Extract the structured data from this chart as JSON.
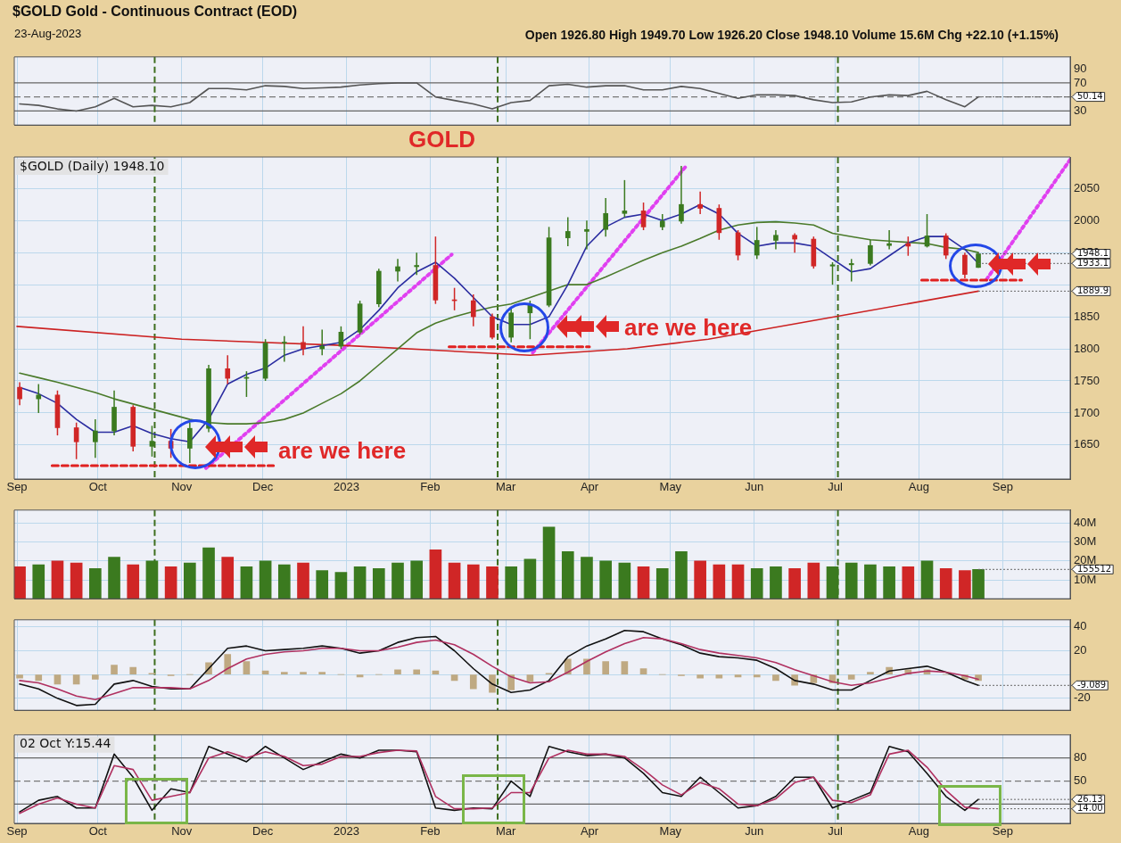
{
  "chart_data": [
    {
      "type": "line",
      "title": "$GOLD Gold - Continuous Contract (EOD)",
      "subtitle": "23-Aug-2023",
      "annotations": [
        "Open 1926.80 High 1949.70 Low 1926.20 Close 1948.10 Volume 15.6M Chg +22.10 (+1.15%)",
        {
          "text": "50.14",
          "x": "2023-08-23",
          "y": 50.14
        }
      ],
      "x": [
        "2022-09-02",
        "2022-09-09",
        "2022-09-16",
        "2022-09-23",
        "2022-09-30",
        "2022-10-07",
        "2022-10-14",
        "2022-10-21",
        "2022-10-28",
        "2022-11-04",
        "2022-11-11",
        "2022-11-18",
        "2022-11-25",
        "2022-12-02",
        "2022-12-09",
        "2022-12-16",
        "2022-12-23",
        "2022-12-30",
        "2023-01-06",
        "2023-01-13",
        "2023-01-20",
        "2023-01-27",
        "2023-02-03",
        "2023-02-10",
        "2023-02-17",
        "2023-02-24",
        "2023-03-03",
        "2023-03-10",
        "2023-03-17",
        "2023-03-24",
        "2023-03-31",
        "2023-04-07",
        "2023-04-14",
        "2023-04-21",
        "2023-04-28",
        "2023-05-05",
        "2023-05-12",
        "2023-05-19",
        "2023-05-26",
        "2023-06-02",
        "2023-06-09",
        "2023-06-16",
        "2023-06-23",
        "2023-06-30",
        "2023-07-07",
        "2023-07-14",
        "2023-07-21",
        "2023-07-28",
        "2023-08-04",
        "2023-08-11",
        "2023-08-18",
        "2023-08-23"
      ],
      "series": [
        {
          "color": "#555555",
          "values": [
            40,
            38,
            33,
            30,
            36,
            48,
            36,
            38,
            36,
            42,
            62,
            62,
            60,
            66,
            65,
            62,
            63,
            64,
            67,
            69,
            70,
            70,
            50,
            45,
            40,
            33,
            42,
            45,
            66,
            68,
            64,
            66,
            66,
            60,
            60,
            65,
            62,
            55,
            48,
            53,
            53,
            52,
            46,
            42,
            43,
            50,
            53,
            52,
            58,
            46,
            36,
            50.14
          ]
        }
      ],
      "xlim": [
        "2022-08-31",
        "2023-09-26"
      ],
      "xticks": [
        {
          "value": "2022-09-01",
          "label": null
        },
        {
          "value": "2022-10-01",
          "label": null
        },
        {
          "value": "2022-11-01",
          "label": null
        },
        {
          "value": "2022-12-01",
          "label": null
        },
        {
          "value": "2023-01-01",
          "label": null
        },
        {
          "value": "2023-02-01",
          "label": null
        },
        {
          "value": "2023-03-01",
          "label": null
        },
        {
          "value": "2023-04-01",
          "label": null
        },
        {
          "value": "2023-05-01",
          "label": null
        },
        {
          "value": "2023-06-01",
          "label": null
        },
        {
          "value": "2023-07-01",
          "label": null
        },
        {
          "value": "2023-08-01",
          "label": null
        },
        {
          "value": "2023-09-01",
          "label": null
        }
      ],
      "ylim": [
        10,
        107
      ],
      "yticks": [
        30,
        {
          "value": 50,
          "label": null
        },
        70,
        90
      ],
      "tick_labels": "y",
      "grid": "x",
      "marker": "none",
      "ref_lines": [
        {
          "axis": "y",
          "value": 70,
          "color": "#666666",
          "line_style": "solid"
        },
        {
          "axis": "y",
          "value": 50,
          "color": "#777777",
          "line_style": "dashed"
        },
        {
          "axis": "y",
          "value": 30,
          "color": "#666666",
          "line_style": "solid"
        },
        {
          "axis": "x",
          "value": "2022-10-22",
          "color": "#3d6e1e",
          "line_style": "dashed"
        },
        {
          "axis": "x",
          "value": "2023-02-26",
          "color": "#3d6e1e",
          "line_style": "dashed"
        },
        {
          "axis": "x",
          "value": "2023-07-02",
          "color": "#3d6e1e",
          "line_style": "dashed"
        }
      ]
    },
    {
      "type": "candlestick",
      "title": "GOLD",
      "annotations": [
        "$GOLD (Daily) 1948.10",
        "are we here",
        "are we here",
        {
          "text": "1948.1",
          "x": "2023-08-23",
          "y": 1948.1
        },
        {
          "text": "1933.1",
          "x": "2023-08-23",
          "y": 1933.1
        },
        {
          "text": "1889.9",
          "x": "2023-08-23",
          "y": 1889.9
        }
      ],
      "x": [
        "2022-09-02",
        "2022-09-09",
        "2022-09-16",
        "2022-09-23",
        "2022-09-30",
        "2022-10-07",
        "2022-10-14",
        "2022-10-21",
        "2022-10-28",
        "2022-11-04",
        "2022-11-11",
        "2022-11-18",
        "2022-11-25",
        "2022-12-02",
        "2022-12-09",
        "2022-12-16",
        "2022-12-23",
        "2022-12-30",
        "2023-01-06",
        "2023-01-13",
        "2023-01-20",
        "2023-01-27",
        "2023-02-03",
        "2023-02-10",
        "2023-02-17",
        "2023-02-24",
        "2023-03-03",
        "2023-03-10",
        "2023-03-17",
        "2023-03-24",
        "2023-03-31",
        "2023-04-07",
        "2023-04-14",
        "2023-04-21",
        "2023-04-28",
        "2023-05-05",
        "2023-05-12",
        "2023-05-19",
        "2023-05-26",
        "2023-06-02",
        "2023-06-09",
        "2023-06-16",
        "2023-06-23",
        "2023-06-30",
        "2023-07-07",
        "2023-07-14",
        "2023-07-21",
        "2023-07-28",
        "2023-08-04",
        "2023-08-11",
        "2023-08-18",
        "2023-08-23"
      ],
      "ohlc": [
        [
          1740,
          1748,
          1712,
          1722
        ],
        [
          1722,
          1745,
          1700,
          1728
        ],
        [
          1728,
          1735,
          1665,
          1677
        ],
        [
          1677,
          1685,
          1628,
          1655
        ],
        [
          1655,
          1690,
          1630,
          1672
        ],
        [
          1672,
          1735,
          1665,
          1709
        ],
        [
          1709,
          1712,
          1640,
          1648
        ],
        [
          1648,
          1680,
          1632,
          1656
        ],
        [
          1656,
          1675,
          1630,
          1645
        ],
        [
          1645,
          1685,
          1622,
          1676
        ],
        [
          1676,
          1775,
          1670,
          1769
        ],
        [
          1769,
          1790,
          1745,
          1754
        ],
        [
          1754,
          1765,
          1725,
          1754
        ],
        [
          1754,
          1815,
          1750,
          1809
        ],
        [
          1809,
          1820,
          1780,
          1810
        ],
        [
          1810,
          1835,
          1790,
          1800
        ],
        [
          1800,
          1830,
          1790,
          1804
        ],
        [
          1804,
          1835,
          1800,
          1826
        ],
        [
          1826,
          1875,
          1822,
          1870
        ],
        [
          1870,
          1925,
          1865,
          1921
        ],
        [
          1921,
          1940,
          1905,
          1928
        ],
        [
          1928,
          1950,
          1915,
          1930
        ],
        [
          1930,
          1975,
          1870,
          1876
        ],
        [
          1876,
          1895,
          1860,
          1875
        ],
        [
          1875,
          1885,
          1835,
          1850
        ],
        [
          1850,
          1855,
          1815,
          1818
        ],
        [
          1818,
          1865,
          1810,
          1856
        ],
        [
          1856,
          1875,
          1815,
          1868
        ],
        [
          1868,
          1990,
          1865,
          1973
        ],
        [
          1973,
          2005,
          1960,
          1983
        ],
        [
          1983,
          2000,
          1955,
          1986
        ],
        [
          1986,
          2035,
          1975,
          2011
        ],
        [
          2011,
          2063,
          2005,
          2015
        ],
        [
          2015,
          2028,
          1985,
          1990
        ],
        [
          1990,
          2010,
          1985,
          1999
        ],
        [
          1999,
          2085,
          1995,
          2025
        ],
        [
          2025,
          2045,
          2010,
          2019
        ],
        [
          2019,
          2025,
          1970,
          1981
        ],
        [
          1981,
          1985,
          1938,
          1946
        ],
        [
          1946,
          1990,
          1940,
          1969
        ],
        [
          1969,
          1985,
          1955,
          1977
        ],
        [
          1977,
          1980,
          1950,
          1971
        ],
        [
          1971,
          1975,
          1925,
          1929
        ],
        [
          1929,
          1935,
          1900,
          1931
        ],
        [
          1931,
          1940,
          1905,
          1933
        ],
        [
          1933,
          1970,
          1930,
          1961
        ],
        [
          1961,
          1985,
          1955,
          1964
        ],
        [
          1964,
          1975,
          1945,
          1960
        ],
        [
          1960,
          2010,
          1958,
          1976
        ],
        [
          1976,
          1980,
          1940,
          1946
        ],
        [
          1946,
          1950,
          1910,
          1916
        ],
        [
          1926.8,
          1949.7,
          1926.2,
          1948.1
        ]
      ],
      "colors": [
        "#d02626",
        "#3b7a1f",
        "#d02626",
        "#d02626",
        "#3b7a1f",
        "#3b7a1f",
        "#d02626",
        "#3b7a1f",
        "#d02626",
        "#3b7a1f",
        "#3b7a1f",
        "#d02626",
        "#3b7a1f",
        "#3b7a1f",
        "#3b7a1f",
        "#d02626",
        "#3b7a1f",
        "#3b7a1f",
        "#3b7a1f",
        "#3b7a1f",
        "#3b7a1f",
        "#3b7a1f",
        "#d02626",
        "#d02626",
        "#d02626",
        "#d02626",
        "#3b7a1f",
        "#3b7a1f",
        "#3b7a1f",
        "#3b7a1f",
        "#3b7a1f",
        "#3b7a1f",
        "#3b7a1f",
        "#d02626",
        "#3b7a1f",
        "#3b7a1f",
        "#d02626",
        "#d02626",
        "#d02626",
        "#3b7a1f",
        "#3b7a1f",
        "#d02626",
        "#d02626",
        "#3b7a1f",
        "#3b7a1f",
        "#3b7a1f",
        "#3b7a1f",
        "#d02626",
        "#3b7a1f",
        "#d02626",
        "#d02626",
        "#3b7a1f"
      ],
      "series": [
        {
          "type": "line",
          "color": "#2a2ca0",
          "values": [
            1740,
            1730,
            1715,
            1690,
            1670,
            1670,
            1680,
            1668,
            1660,
            1655,
            1690,
            1745,
            1760,
            1770,
            1790,
            1800,
            1805,
            1810,
            1830,
            1860,
            1895,
            1920,
            1935,
            1910,
            1880,
            1850,
            1838,
            1838,
            1850,
            1900,
            1960,
            1990,
            2005,
            2010,
            2000,
            2010,
            2025,
            2010,
            1980,
            1960,
            1965,
            1965,
            1960,
            1940,
            1920,
            1925,
            1945,
            1965,
            1975,
            1975,
            1955,
            1933.1
          ]
        },
        {
          "type": "line",
          "color": "#4a7a2a",
          "values": [
            1762,
            1755,
            1748,
            1740,
            1732,
            1722,
            1714,
            1706,
            1698,
            1690,
            1685,
            1683,
            1683,
            1685,
            1690,
            1700,
            1715,
            1730,
            1750,
            1775,
            1800,
            1825,
            1840,
            1850,
            1858,
            1865,
            1870,
            1880,
            1890,
            1900,
            1900,
            1912,
            1925,
            1938,
            1950,
            1960,
            1972,
            1985,
            1993,
            1997,
            1998,
            1996,
            1993,
            1980,
            1975,
            1970,
            1968,
            1966,
            1964,
            1958,
            1955,
            1950
          ]
        },
        {
          "type": "line",
          "color": "#cc2222",
          "x": [
            "2022-09-01",
            "2022-11-01",
            "2023-01-01",
            "2023-03-10",
            "2023-04-15",
            "2023-05-15",
            "2023-07-01",
            "2023-08-23"
          ],
          "values": [
            1835,
            1815,
            1805,
            1790,
            1800,
            1815,
            1850,
            1889.9
          ]
        },
        {
          "type": "line",
          "color": "#e02020",
          "line_style": "dashed",
          "x": [
            "2022-09-14",
            "2022-12-05"
          ],
          "values": [
            1618,
            1618
          ]
        },
        {
          "type": "line",
          "color": "#e02020",
          "line_style": "dashed",
          "x": [
            "2023-02-08",
            "2023-04-01"
          ],
          "values": [
            1803,
            1803
          ]
        },
        {
          "type": "line",
          "color": "#e02020",
          "line_style": "dashed",
          "x": [
            "2023-08-02",
            "2023-09-08"
          ],
          "values": [
            1907,
            1907
          ]
        },
        {
          "type": "line",
          "color": "#e040f0",
          "line_style": "dotted",
          "x": [
            "2022-11-10",
            "2023-02-09"
          ],
          "values": [
            1614,
            1947
          ]
        },
        {
          "type": "line",
          "color": "#e040f0",
          "line_style": "dotted",
          "x": [
            "2023-03-11",
            "2023-05-07"
          ],
          "values": [
            1794,
            2086
          ]
        },
        {
          "type": "line",
          "color": "#e040f0",
          "line_style": "dotted",
          "x": [
            "2023-08-26",
            "2023-09-26"
          ],
          "values": [
            1908,
            2095
          ]
        }
      ],
      "xlim": [
        "2022-08-31",
        "2023-09-26"
      ],
      "xticks": [
        {
          "value": "2022-09-01",
          "label": "Sep"
        },
        {
          "value": "2022-10-01",
          "label": "Oct"
        },
        {
          "value": "2022-11-01",
          "label": "Nov"
        },
        {
          "value": "2022-12-01",
          "label": "Dec"
        },
        {
          "value": "2023-01-01",
          "label": "2023"
        },
        {
          "value": "2023-02-01",
          "label": "Feb"
        },
        {
          "value": "2023-03-01",
          "label": "Mar"
        },
        {
          "value": "2023-04-01",
          "label": "Apr"
        },
        {
          "value": "2023-05-01",
          "label": "May"
        },
        {
          "value": "2023-06-01",
          "label": "Jun"
        },
        {
          "value": "2023-07-01",
          "label": "Jul"
        },
        {
          "value": "2023-08-01",
          "label": "Aug"
        },
        {
          "value": "2023-09-01",
          "label": "Sep"
        }
      ],
      "ylim": [
        1597,
        2099
      ],
      "yticks": [
        1650,
        1700,
        1750,
        1800,
        1850,
        {
          "value": 1900,
          "label": null
        },
        1950,
        2000,
        2050
      ],
      "grid": true,
      "marker": "none",
      "ref_lines": [
        {
          "axis": "x",
          "value": "2022-10-22",
          "color": "#3d6e1e",
          "line_style": "dashed"
        },
        {
          "axis": "x",
          "value": "2023-02-26",
          "color": "#3d6e1e",
          "line_style": "dashed"
        },
        {
          "axis": "x",
          "value": "2023-07-02",
          "color": "#3d6e1e",
          "line_style": "dashed"
        }
      ]
    },
    {
      "type": "bar",
      "annotations": [
        {
          "text": "155512",
          "x": "2023-08-23",
          "y": 15.5512
        }
      ],
      "x": [
        "2022-09-02",
        "2022-09-09",
        "2022-09-16",
        "2022-09-23",
        "2022-09-30",
        "2022-10-07",
        "2022-10-14",
        "2022-10-21",
        "2022-10-28",
        "2022-11-04",
        "2022-11-11",
        "2022-11-18",
        "2022-11-25",
        "2022-12-02",
        "2022-12-09",
        "2022-12-16",
        "2022-12-23",
        "2022-12-30",
        "2023-01-06",
        "2023-01-13",
        "2023-01-20",
        "2023-01-27",
        "2023-02-03",
        "2023-02-10",
        "2023-02-17",
        "2023-02-24",
        "2023-03-03",
        "2023-03-10",
        "2023-03-17",
        "2023-03-24",
        "2023-03-31",
        "2023-04-07",
        "2023-04-14",
        "2023-04-21",
        "2023-04-28",
        "2023-05-05",
        "2023-05-12",
        "2023-05-19",
        "2023-05-26",
        "2023-06-02",
        "2023-06-09",
        "2023-06-16",
        "2023-06-23",
        "2023-06-30",
        "2023-07-07",
        "2023-07-14",
        "2023-07-21",
        "2023-07-28",
        "2023-08-04",
        "2023-08-11",
        "2023-08-18",
        "2023-08-23"
      ],
      "values": [
        17,
        18,
        20,
        19,
        16,
        22,
        18,
        20,
        17,
        19,
        27,
        22,
        17,
        20,
        18,
        19,
        15,
        14,
        17,
        16,
        19,
        20,
        26,
        19,
        18,
        17,
        17,
        21,
        38,
        25,
        22,
        20,
        19,
        17,
        16,
        25,
        20,
        18,
        18,
        16,
        17,
        16,
        19,
        17,
        19,
        18,
        17,
        17,
        20,
        16,
        15,
        15.5512
      ],
      "colors": [
        "#d02626",
        "#3b7a1f",
        "#d02626",
        "#d02626",
        "#3b7a1f",
        "#3b7a1f",
        "#d02626",
        "#3b7a1f",
        "#d02626",
        "#3b7a1f",
        "#3b7a1f",
        "#d02626",
        "#3b7a1f",
        "#3b7a1f",
        "#3b7a1f",
        "#d02626",
        "#3b7a1f",
        "#3b7a1f",
        "#3b7a1f",
        "#3b7a1f",
        "#3b7a1f",
        "#3b7a1f",
        "#d02626",
        "#d02626",
        "#d02626",
        "#d02626",
        "#3b7a1f",
        "#3b7a1f",
        "#3b7a1f",
        "#3b7a1f",
        "#3b7a1f",
        "#3b7a1f",
        "#3b7a1f",
        "#d02626",
        "#3b7a1f",
        "#3b7a1f",
        "#d02626",
        "#d02626",
        "#d02626",
        "#3b7a1f",
        "#3b7a1f",
        "#d02626",
        "#d02626",
        "#3b7a1f",
        "#3b7a1f",
        "#3b7a1f",
        "#3b7a1f",
        "#d02626",
        "#3b7a1f",
        "#d02626",
        "#d02626",
        "#3b7a1f"
      ],
      "xlim": [
        "2022-08-31",
        "2023-09-26"
      ],
      "xticks": [
        {
          "value": "2022-09-01",
          "label": null
        },
        {
          "value": "2022-10-01",
          "label": null
        },
        {
          "value": "2022-11-01",
          "label": null
        },
        {
          "value": "2022-12-01",
          "label": null
        },
        {
          "value": "2023-01-01",
          "label": null
        },
        {
          "value": "2023-02-01",
          "label": null
        },
        {
          "value": "2023-03-01",
          "label": null
        },
        {
          "value": "2023-04-01",
          "label": null
        },
        {
          "value": "2023-05-01",
          "label": null
        },
        {
          "value": "2023-06-01",
          "label": null
        },
        {
          "value": "2023-07-01",
          "label": null
        },
        {
          "value": "2023-08-01",
          "label": null
        },
        {
          "value": "2023-09-01",
          "label": null
        }
      ],
      "ylim": [
        0,
        47
      ],
      "yticks": [
        {
          "value": 10,
          "label": "10M"
        },
        {
          "value": 20,
          "label": "20M"
        },
        {
          "value": 30,
          "label": "30M"
        },
        {
          "value": 40,
          "label": "40M"
        }
      ],
      "tick_labels": "y",
      "grid": true,
      "ref_lines": [
        {
          "axis": "x",
          "value": "2022-10-22",
          "color": "#3d6e1e",
          "line_style": "dashed"
        },
        {
          "axis": "x",
          "value": "2023-02-26",
          "color": "#3d6e1e",
          "line_style": "dashed"
        },
        {
          "axis": "x",
          "value": "2023-07-02",
          "color": "#3d6e1e",
          "line_style": "dashed"
        }
      ]
    },
    {
      "type": "line",
      "annotations": [
        {
          "text": "-9.089",
          "x": "2023-08-23",
          "y": -9.089
        }
      ],
      "x": [
        "2022-09-02",
        "2022-09-09",
        "2022-09-16",
        "2022-09-23",
        "2022-09-30",
        "2022-10-07",
        "2022-10-14",
        "2022-10-21",
        "2022-10-28",
        "2022-11-04",
        "2022-11-11",
        "2022-11-18",
        "2022-11-25",
        "2022-12-02",
        "2022-12-09",
        "2022-12-16",
        "2022-12-23",
        "2022-12-30",
        "2023-01-06",
        "2023-01-13",
        "2023-01-20",
        "2023-01-27",
        "2023-02-03",
        "2023-02-10",
        "2023-02-17",
        "2023-02-24",
        "2023-03-03",
        "2023-03-10",
        "2023-03-17",
        "2023-03-24",
        "2023-03-31",
        "2023-04-07",
        "2023-04-14",
        "2023-04-21",
        "2023-04-28",
        "2023-05-05",
        "2023-05-12",
        "2023-05-19",
        "2023-05-26",
        "2023-06-02",
        "2023-06-09",
        "2023-06-16",
        "2023-06-23",
        "2023-06-30",
        "2023-07-07",
        "2023-07-14",
        "2023-07-21",
        "2023-07-28",
        "2023-08-04",
        "2023-08-11",
        "2023-08-18",
        "2023-08-23"
      ],
      "series": [
        {
          "type": "bar",
          "color": "#bfa982",
          "values": [
            -3,
            -5,
            -8,
            -8,
            -4,
            8,
            6,
            1,
            -1,
            0,
            10,
            17,
            11,
            3,
            2,
            2,
            2,
            0,
            -2,
            0,
            4,
            4,
            3,
            -5,
            -12,
            -15,
            -13,
            -6,
            1,
            13,
            13,
            11,
            11,
            5,
            0,
            -1,
            -3,
            -3,
            -2,
            -2,
            -5,
            -9,
            -7,
            -7,
            -4,
            2,
            6,
            4,
            4,
            0,
            -4,
            -5
          ]
        },
        {
          "type": "line",
          "color": "#b03060",
          "values": [
            -5,
            -7,
            -12,
            -18,
            -21,
            -16,
            -11,
            -11,
            -11,
            -12,
            -5,
            5,
            13,
            17,
            19,
            20,
            22,
            22,
            20,
            20,
            23,
            27,
            29,
            25,
            17,
            7,
            -2,
            -7,
            -6,
            2,
            11,
            19,
            26,
            31,
            30,
            26,
            21,
            18,
            16,
            14,
            10,
            4,
            -1,
            -6,
            -9,
            -7,
            -3,
            1,
            3,
            2,
            -1,
            -4
          ]
        },
        {
          "type": "line",
          "color": "#111111",
          "values": [
            -8,
            -12,
            -20,
            -26,
            -25,
            -8,
            -5,
            -10,
            -12,
            -12,
            5,
            22,
            24,
            20,
            21,
            22,
            24,
            22,
            18,
            20,
            27,
            31,
            32,
            20,
            5,
            -8,
            -15,
            -13,
            -5,
            15,
            24,
            30,
            37,
            36,
            30,
            25,
            18,
            15,
            14,
            12,
            5,
            -5,
            -8,
            -13,
            -13,
            -5,
            3,
            5,
            7,
            2,
            -5,
            -9.089
          ]
        }
      ],
      "xlim": [
        "2022-08-31",
        "2023-09-26"
      ],
      "xticks": [
        {
          "value": "2022-09-01",
          "label": null
        },
        {
          "value": "2022-10-01",
          "label": null
        },
        {
          "value": "2022-11-01",
          "label": null
        },
        {
          "value": "2022-12-01",
          "label": null
        },
        {
          "value": "2023-01-01",
          "label": null
        },
        {
          "value": "2023-02-01",
          "label": null
        },
        {
          "value": "2023-03-01",
          "label": null
        },
        {
          "value": "2023-04-01",
          "label": null
        },
        {
          "value": "2023-05-01",
          "label": null
        },
        {
          "value": "2023-06-01",
          "label": null
        },
        {
          "value": "2023-07-01",
          "label": null
        },
        {
          "value": "2023-08-01",
          "label": null
        },
        {
          "value": "2023-09-01",
          "label": null
        }
      ],
      "ylim": [
        -30,
        46
      ],
      "yticks": [
        -20,
        {
          "value": 0,
          "label": null
        },
        20,
        40
      ],
      "tick_labels": "y",
      "grid": true,
      "marker": "none",
      "ref_lines": [
        {
          "axis": "x",
          "value": "2022-10-22",
          "color": "#3d6e1e",
          "line_style": "dashed"
        },
        {
          "axis": "x",
          "value": "2023-02-26",
          "color": "#3d6e1e",
          "line_style": "dashed"
        },
        {
          "axis": "x",
          "value": "2023-07-02",
          "color": "#3d6e1e",
          "line_style": "dashed"
        }
      ]
    },
    {
      "type": "line",
      "annotations": [
        "02 Oct Y:15.44",
        {
          "text": "26.13",
          "x": "2023-08-23",
          "y": 26.13
        },
        {
          "text": "14.00",
          "x": "2023-08-23",
          "y": 14
        }
      ],
      "x": [
        "2022-09-02",
        "2022-09-09",
        "2022-09-16",
        "2022-09-23",
        "2022-09-30",
        "2022-10-07",
        "2022-10-14",
        "2022-10-21",
        "2022-10-28",
        "2022-11-04",
        "2022-11-11",
        "2022-11-18",
        "2022-11-25",
        "2022-12-02",
        "2022-12-09",
        "2022-12-16",
        "2022-12-23",
        "2022-12-30",
        "2023-01-06",
        "2023-01-13",
        "2023-01-20",
        "2023-01-27",
        "2023-02-03",
        "2023-02-10",
        "2023-02-17",
        "2023-02-24",
        "2023-03-03",
        "2023-03-10",
        "2023-03-17",
        "2023-03-24",
        "2023-03-31",
        "2023-04-07",
        "2023-04-14",
        "2023-04-21",
        "2023-04-28",
        "2023-05-05",
        "2023-05-12",
        "2023-05-19",
        "2023-05-26",
        "2023-06-02",
        "2023-06-09",
        "2023-06-16",
        "2023-06-23",
        "2023-06-30",
        "2023-07-07",
        "2023-07-14",
        "2023-07-21",
        "2023-07-28",
        "2023-08-04",
        "2023-08-11",
        "2023-08-18",
        "2023-08-23"
      ],
      "series": [
        {
          "type": "line",
          "color": "#b03060",
          "values": [
            8,
            20,
            28,
            20,
            15,
            70,
            65,
            25,
            30,
            35,
            80,
            88,
            80,
            88,
            82,
            70,
            72,
            82,
            82,
            87,
            90,
            89,
            30,
            14,
            14,
            15,
            35,
            35,
            80,
            90,
            85,
            85,
            82,
            65,
            45,
            32,
            48,
            40,
            20,
            18,
            27,
            48,
            55,
            25,
            22,
            32,
            85,
            90,
            68,
            38,
            16,
            14
          ]
        },
        {
          "type": "line",
          "color": "#111111",
          "values": [
            10,
            25,
            30,
            15,
            15,
            85,
            55,
            12,
            40,
            35,
            95,
            85,
            75,
            95,
            80,
            65,
            75,
            85,
            80,
            90,
            90,
            88,
            15,
            12,
            15,
            14,
            50,
            30,
            95,
            88,
            83,
            85,
            80,
            60,
            35,
            30,
            55,
            35,
            15,
            18,
            30,
            55,
            55,
            15,
            25,
            35,
            95,
            88,
            60,
            30,
            12,
            26.13
          ]
        }
      ],
      "xlim": [
        "2022-08-31",
        "2023-09-26"
      ],
      "xticks": [
        {
          "value": "2022-09-01",
          "label": "Sep"
        },
        {
          "value": "2022-10-01",
          "label": "Oct"
        },
        {
          "value": "2022-11-01",
          "label": "Nov"
        },
        {
          "value": "2022-12-01",
          "label": "Dec"
        },
        {
          "value": "2023-01-01",
          "label": "2023"
        },
        {
          "value": "2023-02-01",
          "label": "Feb"
        },
        {
          "value": "2023-03-01",
          "label": "Mar"
        },
        {
          "value": "2023-04-01",
          "label": "Apr"
        },
        {
          "value": "2023-05-01",
          "label": "May"
        },
        {
          "value": "2023-06-01",
          "label": "Jun"
        },
        {
          "value": "2023-07-01",
          "label": "Jul"
        },
        {
          "value": "2023-08-01",
          "label": "Aug"
        },
        {
          "value": "2023-09-01",
          "label": "Sep"
        }
      ],
      "ylim": [
        -5,
        110
      ],
      "yticks": [
        {
          "value": 20,
          "label": null
        },
        50,
        80
      ],
      "grid": "x",
      "marker": "none",
      "ref_lines": [
        {
          "axis": "y",
          "value": 80,
          "color": "#666666",
          "line_style": "solid"
        },
        {
          "axis": "y",
          "value": 50,
          "color": "#777777",
          "line_style": "dashed"
        },
        {
          "axis": "y",
          "value": 20,
          "color": "#666666",
          "line_style": "solid"
        },
        {
          "axis": "x",
          "value": "2022-10-22",
          "color": "#3d6e1e",
          "line_style": "dashed"
        },
        {
          "axis": "x",
          "value": "2023-02-26",
          "color": "#3d6e1e",
          "line_style": "dashed"
        },
        {
          "axis": "x",
          "value": "2023-07-02",
          "color": "#3d6e1e",
          "line_style": "dashed"
        }
      ]
    }
  ]
}
